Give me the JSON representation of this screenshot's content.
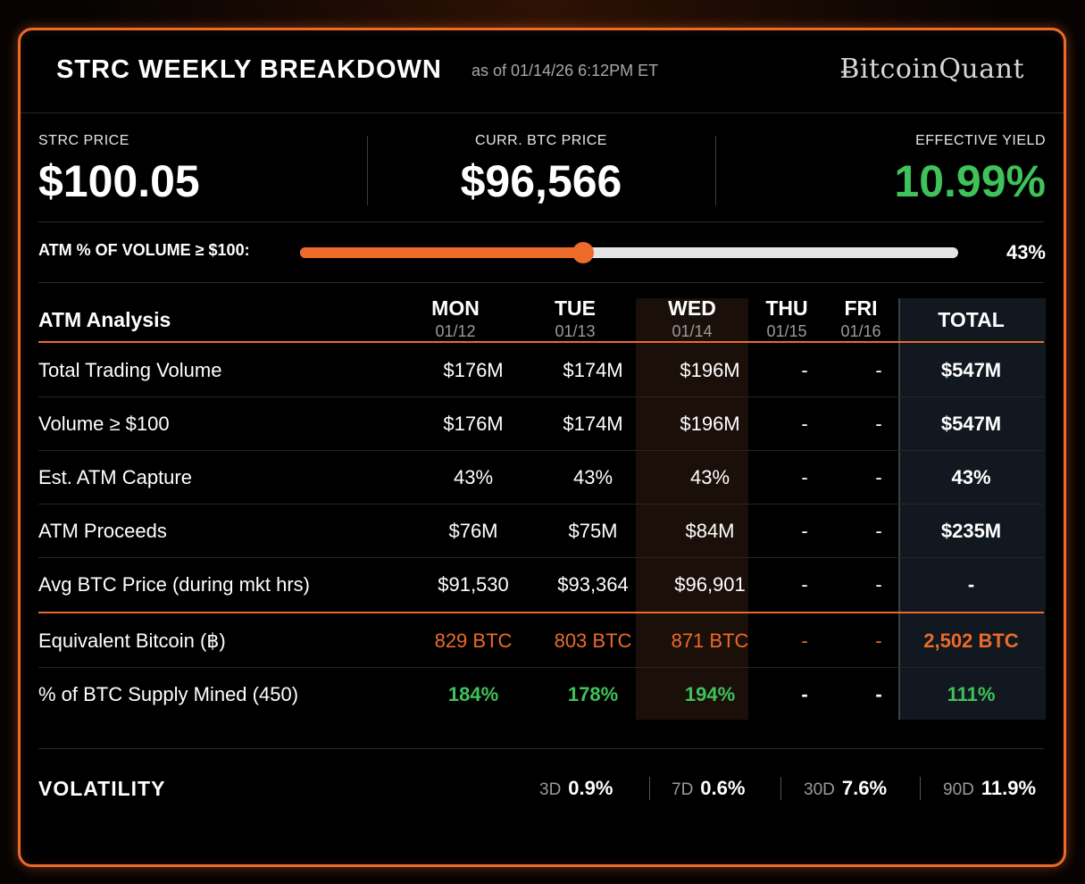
{
  "header": {
    "title": "STRC WEEKLY BREAKDOWN",
    "as_of": "as of 01/14/26 6:12PM ET",
    "logo": "ɃitcoinQuant"
  },
  "metrics": {
    "strc_price_label": "STRC PRICE",
    "strc_price_value": "$100.05",
    "btc_price_label": "CURR. BTC PRICE",
    "btc_price_value": "$96,566",
    "yield_label": "EFFECTIVE YIELD",
    "yield_value": "10.99%"
  },
  "atm_volume": {
    "label": "ATM % OF VOLUME ≥ $100:",
    "percent_text": "43%",
    "fraction": 0.43
  },
  "table": {
    "header_label": "ATM Analysis",
    "days": [
      {
        "day": "MON",
        "date": "01/12"
      },
      {
        "day": "TUE",
        "date": "01/13"
      },
      {
        "day": "WED",
        "date": "01/14"
      },
      {
        "day": "THU",
        "date": "01/15"
      },
      {
        "day": "FRI",
        "date": "01/16"
      }
    ],
    "total_label": "TOTAL",
    "rows": [
      {
        "label": "Total Trading Volume",
        "values": [
          "$176M",
          "$174M",
          "$196M",
          "-",
          "-"
        ],
        "total": "$547M"
      },
      {
        "label": "Volume ≥ $100",
        "values": [
          "$176M",
          "$174M",
          "$196M",
          "-",
          "-"
        ],
        "total": "$547M"
      },
      {
        "label": "Est. ATM Capture",
        "values": [
          "43%",
          "43%",
          "43%",
          "-",
          "-"
        ],
        "total": "43%"
      },
      {
        "label": "ATM Proceeds",
        "values": [
          "$76M",
          "$75M",
          "$84M",
          "-",
          "-"
        ],
        "total": "$235M"
      },
      {
        "label": "Avg BTC Price (during mkt hrs)",
        "values": [
          "$91,530",
          "$93,364",
          "$96,901",
          "-",
          "-"
        ],
        "total": "-"
      },
      {
        "label": "Equivalent Bitcoin (฿)",
        "values": [
          "829 BTC",
          "803 BTC",
          "871 BTC",
          "-",
          "-"
        ],
        "total": "2,502 BTC"
      },
      {
        "label": "% of BTC Supply Mined (450)",
        "values": [
          "184%",
          "178%",
          "194%",
          "-",
          "-"
        ],
        "total": "111%"
      }
    ]
  },
  "volatility": {
    "label": "VOLATILITY",
    "items": [
      {
        "period": "3D",
        "value": "0.9%"
      },
      {
        "period": "7D",
        "value": "0.6%"
      },
      {
        "period": "30D",
        "value": "7.6%"
      },
      {
        "period": "90D",
        "value": "11.9%"
      }
    ]
  },
  "colors": {
    "accent": "#ec6a2a",
    "positive": "#3ec25a",
    "background": "#000000"
  }
}
